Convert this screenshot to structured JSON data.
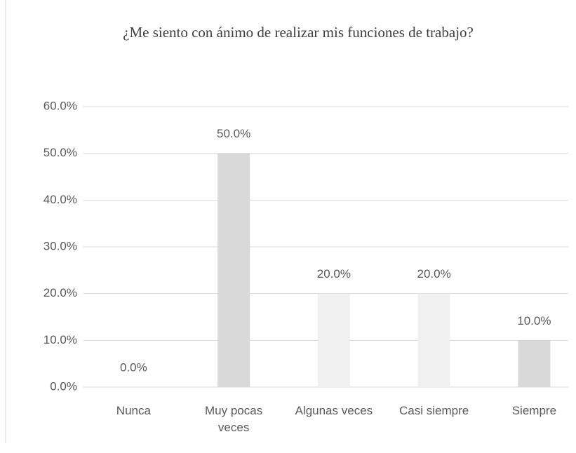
{
  "chart_data": {
    "type": "bar",
    "title": "¿Me siento con ánimo de realizar mis funciones de trabajo?",
    "categories": [
      "Nunca",
      "Muy pocas veces",
      "Algunas veces",
      "Casi siempre",
      "Siempre"
    ],
    "values": [
      0,
      50,
      20,
      20,
      10
    ],
    "value_labels": [
      "0.0%",
      "50.0%",
      "20.0%",
      "20.0%",
      "10.0%"
    ],
    "colors": [
      "#d9d9d9",
      "#d9d9d9",
      "#f0f0f0",
      "#f0f0f0",
      "#d9d9d9"
    ],
    "ylim": [
      0,
      60
    ],
    "yticks": [
      {
        "value": 0,
        "label": "0.0%"
      },
      {
        "value": 10,
        "label": "10.0%"
      },
      {
        "value": 20,
        "label": "20.0%"
      },
      {
        "value": 30,
        "label": "30.0%"
      },
      {
        "value": 40,
        "label": "40.0%"
      },
      {
        "value": 50,
        "label": "50.0%"
      },
      {
        "value": 60,
        "label": "60.0%"
      }
    ],
    "grid": true
  }
}
